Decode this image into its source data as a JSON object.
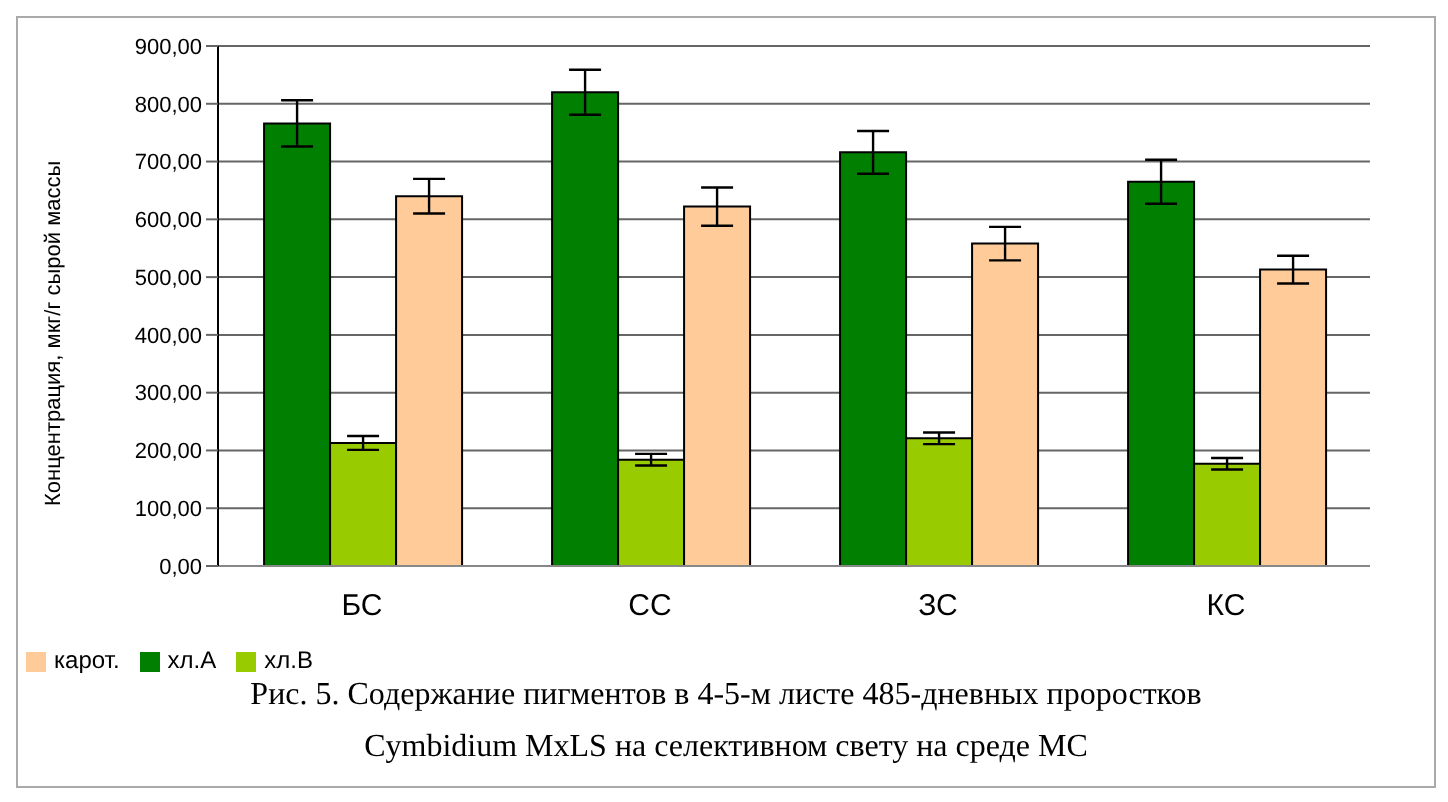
{
  "chart_data": {
    "type": "bar",
    "title": "Рис. 5. Содержание пигментов в 4-5-м листе 485-дневных проростков Cymbidium  MxLS на селективном свету на среде МС",
    "ylabel": "Концентрация, мкг/г сырой массы",
    "categories": [
      "БС",
      "СС",
      "ЗС",
      "КС"
    ],
    "series": [
      {
        "name": "хл.А",
        "color": "#007f00",
        "values": [
          766,
          820,
          716,
          665
        ],
        "errors": [
          40,
          39,
          37,
          38
        ]
      },
      {
        "name": "хл.В",
        "color": "#99cc00",
        "values": [
          213,
          184,
          221,
          177
        ],
        "errors": [
          12,
          10,
          10,
          10
        ]
      },
      {
        "name": "карот.",
        "color": "#ffcc99",
        "values": [
          640,
          622,
          558,
          513
        ],
        "errors": [
          30,
          33,
          29,
          24
        ]
      }
    ],
    "ylim": [
      0,
      900
    ],
    "yticks": [
      {
        "value": 0,
        "label": "0,00"
      },
      {
        "value": 100,
        "label": "100,00"
      },
      {
        "value": 200,
        "label": "200,00"
      },
      {
        "value": 300,
        "label": "300,00"
      },
      {
        "value": 400,
        "label": "400,00"
      },
      {
        "value": 500,
        "label": "500,00"
      },
      {
        "value": 600,
        "label": "600,00"
      },
      {
        "value": 700,
        "label": "700,00"
      },
      {
        "value": 800,
        "label": "800,00"
      },
      {
        "value": 900,
        "label": "900,00"
      }
    ],
    "grid": "y",
    "legend": "bottom left"
  }
}
